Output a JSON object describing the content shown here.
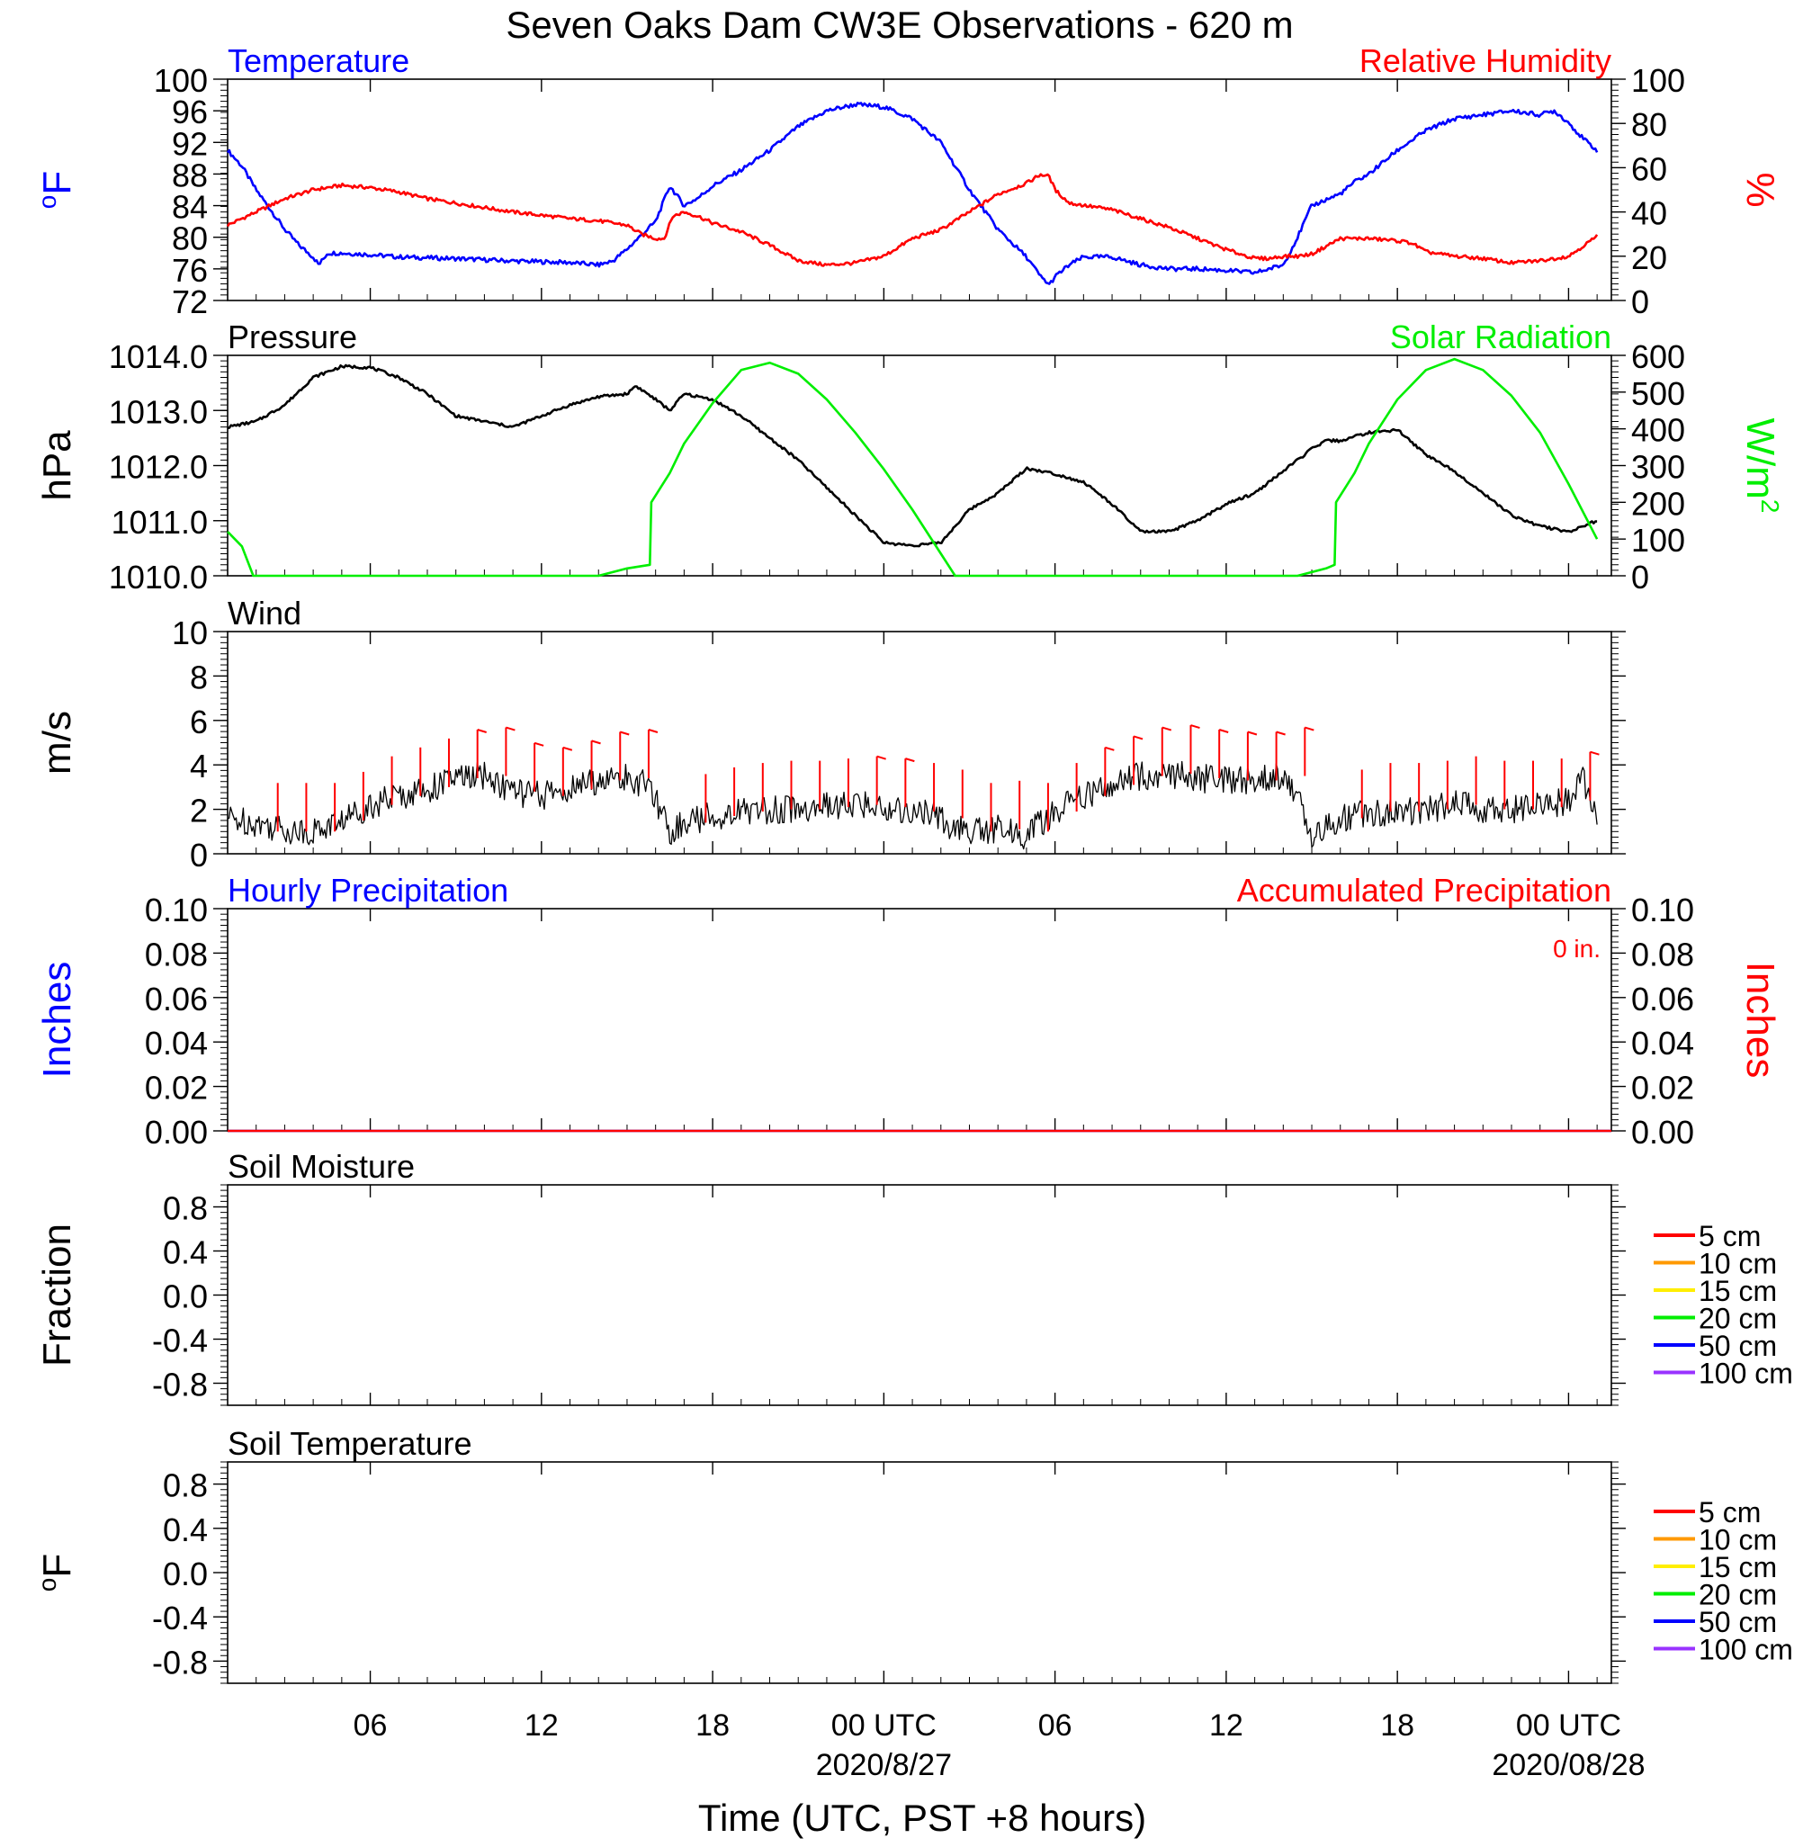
{
  "title": "Seven Oaks Dam CW3E Observations - 620 m",
  "xaxis": {
    "label": "Time (UTC, PST +8 hours)",
    "range_hours": [
      0,
      48.5
    ],
    "ticks": [
      {
        "hour": 5,
        "label": "06",
        "date": ""
      },
      {
        "hour": 11,
        "label": "12",
        "date": ""
      },
      {
        "hour": 17,
        "label": "18",
        "date": ""
      },
      {
        "hour": 23,
        "label": "00 UTC",
        "date": "2020/8/27"
      },
      {
        "hour": 29,
        "label": "06",
        "date": ""
      },
      {
        "hour": 35,
        "label": "12",
        "date": ""
      },
      {
        "hour": 41,
        "label": "18",
        "date": ""
      },
      {
        "hour": 47,
        "label": "00 UTC",
        "date": "2020/08/28"
      }
    ]
  },
  "colors": {
    "temperature": "#0000ff",
    "humidity": "#ff0000",
    "pressure": "#000000",
    "solar": "#00ee00",
    "wind": "#000000",
    "barb": "#ff0000",
    "hourly_precip": "#0000ff",
    "accum_precip": "#ff0000"
  },
  "legend": [
    {
      "label": "5 cm",
      "color": "#ff0000"
    },
    {
      "label": "10 cm",
      "color": "#ff9900"
    },
    {
      "label": "15 cm",
      "color": "#ffee00"
    },
    {
      "label": "20 cm",
      "color": "#00ee00"
    },
    {
      "label": "50 cm",
      "color": "#0000ff"
    },
    {
      "label": "100 cm",
      "color": "#9933ff"
    }
  ],
  "chart_data": [
    {
      "type": "line",
      "title_left": "Temperature",
      "title_right": "Relative Humidity",
      "ylabel_left": "oF",
      "ylabel_right": "%",
      "ylim_left": [
        72,
        100
      ],
      "ylim_right": [
        0,
        100
      ],
      "yticks_left": [
        "72",
        "76",
        "80",
        "84",
        "88",
        "92",
        "96",
        "100"
      ],
      "yticks_right": [
        "0",
        "20",
        "40",
        "60",
        "80",
        "100"
      ],
      "series": [
        {
          "name": "Temperature",
          "axis": "left",
          "x": [
            0,
            0.5,
            1,
            1.5,
            2,
            2.5,
            3,
            3.2,
            3.5,
            4,
            5,
            6,
            8,
            10,
            12,
            13,
            13.5,
            14,
            15,
            15.5,
            16,
            16.5,
            17,
            18,
            19,
            20,
            21,
            22,
            23,
            24,
            25,
            26,
            27,
            28,
            28.5,
            28.8,
            29,
            29.5,
            30,
            31,
            32,
            33,
            34,
            35,
            36,
            37,
            37.5,
            38,
            39,
            39.5,
            40,
            41,
            42,
            43,
            44,
            45,
            46,
            46.5,
            47,
            47.5,
            48
          ],
          "y": [
            91,
            89,
            86,
            83.5,
            81,
            79,
            77.5,
            76.5,
            78,
            78,
            77.8,
            77.5,
            77.3,
            77,
            76.8,
            76.5,
            77,
            78.5,
            82,
            86.5,
            84,
            85,
            86.5,
            88.5,
            91,
            94,
            96,
            96.8,
            96.5,
            95,
            92,
            86,
            81,
            77.5,
            75,
            74,
            75,
            76.5,
            77.5,
            77.5,
            76.5,
            76,
            76,
            75.8,
            75.5,
            76.5,
            80,
            84,
            85.5,
            87,
            88,
            91,
            93.5,
            95,
            95.5,
            96,
            95.5,
            96,
            94.5,
            92.5,
            91
          ]
        },
        {
          "name": "Relative Humidity",
          "axis": "right",
          "x": [
            0,
            1,
            2,
            3,
            4,
            5,
            6,
            7,
            8,
            10,
            12,
            13,
            14,
            14.5,
            15,
            15.3,
            15.6,
            16,
            16.5,
            17,
            18,
            19,
            20,
            21,
            22,
            23,
            24,
            25,
            26,
            27,
            28,
            28.5,
            28.8,
            29,
            29.5,
            30,
            31,
            32,
            33,
            34,
            35,
            36,
            36.5,
            37,
            37.5,
            38,
            39,
            40,
            41,
            41.5,
            42,
            43,
            44,
            45,
            46,
            47,
            48
          ],
          "y": [
            34,
            40,
            46,
            50,
            52,
            51,
            49,
            46,
            44,
            40,
            37,
            36,
            34,
            30,
            28,
            28,
            38,
            40,
            38,
            35,
            31,
            25,
            18,
            16,
            17,
            20,
            28,
            32,
            40,
            48,
            53,
            57,
            56,
            50,
            44,
            43,
            41,
            37,
            33,
            28,
            23,
            19,
            19,
            20,
            20,
            21,
            28,
            28,
            27,
            26,
            22,
            20,
            19,
            17,
            18,
            20,
            29
          ]
        }
      ]
    },
    {
      "type": "line",
      "title_left": "Pressure",
      "title_right": "Solar Radiation",
      "ylabel_left": "hPa",
      "ylabel_right": "W/m2",
      "ylim_left": [
        1010,
        1014
      ],
      "ylim_right": [
        0,
        600
      ],
      "yticks_left": [
        "1010.0",
        "1011.0",
        "1012.0",
        "1013.0",
        "1014.0"
      ],
      "yticks_right": [
        "0",
        "100",
        "200",
        "300",
        "400",
        "500",
        "600"
      ],
      "series": [
        {
          "name": "Pressure",
          "axis": "left",
          "x": [
            0,
            1,
            2,
            3,
            4,
            5,
            6,
            7,
            8,
            9,
            10,
            11,
            12,
            13,
            14,
            14.3,
            15,
            15.5,
            16,
            17,
            18,
            19,
            20,
            21,
            22,
            23,
            24,
            25,
            26,
            27,
            28,
            29,
            30,
            31,
            32,
            33,
            34,
            35,
            36,
            37,
            38,
            38.5,
            39,
            40,
            41,
            42,
            43,
            44,
            45,
            46,
            47,
            48
          ],
          "y": [
            1012.7,
            1012.8,
            1013.1,
            1013.6,
            1013.8,
            1013.78,
            1013.6,
            1013.3,
            1012.9,
            1012.8,
            1012.7,
            1012.9,
            1013.1,
            1013.25,
            1013.3,
            1013.45,
            1013.2,
            1013.0,
            1013.3,
            1013.2,
            1012.9,
            1012.5,
            1012.1,
            1011.6,
            1011.1,
            1010.6,
            1010.55,
            1010.6,
            1011.2,
            1011.5,
            1011.95,
            1011.85,
            1011.7,
            1011.3,
            1010.8,
            1010.8,
            1011.0,
            1011.3,
            1011.5,
            1011.9,
            1012.3,
            1012.45,
            1012.45,
            1012.6,
            1012.65,
            1012.2,
            1011.9,
            1011.5,
            1011.1,
            1010.9,
            1010.8,
            1011.0
          ]
        },
        {
          "name": "Solar Radiation",
          "axis": "right",
          "x": [
            0,
            0.5,
            0.9,
            1.5,
            13,
            14,
            14.8,
            14.85,
            15.5,
            16,
            17,
            18,
            19,
            20,
            21,
            22,
            23,
            24,
            25,
            25.5,
            26,
            37.5,
            38.5,
            38.8,
            38.85,
            39.5,
            40,
            41,
            42,
            43,
            44,
            45,
            46,
            47,
            48
          ],
          "y": [
            120,
            80,
            0,
            0,
            0,
            20,
            30,
            200,
            280,
            360,
            470,
            560,
            580,
            550,
            480,
            390,
            290,
            180,
            60,
            0,
            0,
            0,
            20,
            30,
            200,
            280,
            360,
            480,
            560,
            590,
            560,
            490,
            390,
            250,
            100
          ]
        }
      ]
    },
    {
      "type": "line",
      "title_left": "Wind",
      "ylabel_left": "m/s",
      "ylim_left": [
        0,
        10
      ],
      "yticks_left": [
        "0",
        "2",
        "4",
        "6",
        "8",
        "10"
      ],
      "series": [
        {
          "name": "Wind",
          "axis": "left",
          "x": [
            0,
            1,
            2,
            2.5,
            3,
            4,
            5,
            6,
            7,
            8,
            9,
            10,
            11,
            12,
            13,
            14,
            14.5,
            15,
            15.5,
            16,
            17,
            18,
            19,
            20,
            21,
            22,
            23,
            24,
            25,
            25.5,
            26,
            27,
            27.5,
            28,
            29,
            30,
            31,
            32,
            33,
            34,
            35,
            36,
            37,
            37.5,
            38,
            38.5,
            39,
            40,
            41,
            42,
            43,
            44,
            45,
            46,
            47,
            47.5,
            48
          ],
          "y": [
            1.6,
            1.4,
            1.1,
            1.0,
            1.0,
            1.5,
            2.2,
            2.6,
            2.9,
            3.4,
            3.5,
            2.8,
            2.6,
            2.9,
            3.3,
            3.4,
            3.2,
            2.5,
            1.0,
            1.4,
            1.7,
            1.9,
            2.0,
            2.0,
            2.1,
            2.2,
            2.1,
            1.9,
            1.6,
            1.1,
            1.0,
            1.1,
            1.0,
            0.8,
            1.9,
            2.6,
            3.1,
            3.5,
            3.6,
            3.4,
            3.3,
            3.3,
            3.5,
            2.5,
            0.8,
            1.2,
            1.6,
            1.9,
            1.9,
            2.0,
            2.2,
            2.0,
            2.0,
            2.1,
            2.4,
            3.3,
            1.8
          ]
        },
        {
          "name": "Wind Barbs",
          "axis": "left",
          "x": [
            1,
            2,
            3,
            4,
            5,
            6,
            7,
            8,
            9,
            10,
            11,
            12,
            13,
            14,
            16,
            17,
            18,
            19,
            20,
            21,
            22,
            23,
            24,
            25,
            26,
            27,
            28,
            29,
            30,
            31,
            32,
            33,
            34,
            35,
            36,
            37,
            39,
            40,
            41,
            42,
            43,
            44,
            45,
            46,
            47
          ],
          "y": [
            1.0,
            1.0,
            1.0,
            1.5,
            2.2,
            2.6,
            3.0,
            3.4,
            3.5,
            2.8,
            2.6,
            2.9,
            3.3,
            3.4,
            1.4,
            1.7,
            1.9,
            2.0,
            2.0,
            2.1,
            2.2,
            2.1,
            1.9,
            1.6,
            1.0,
            1.1,
            1.0,
            1.9,
            2.6,
            3.1,
            3.5,
            3.6,
            3.4,
            3.3,
            3.3,
            3.5,
            1.6,
            1.9,
            1.9,
            2.0,
            2.2,
            2.0,
            2.0,
            2.1,
            2.4
          ],
          "flag": [
            0,
            0,
            0,
            0,
            0,
            0,
            0,
            1,
            1,
            1,
            1,
            1,
            1,
            1,
            0,
            0,
            0,
            0,
            0,
            0,
            1,
            1,
            0,
            0,
            0,
            0,
            0,
            0,
            1,
            1,
            1,
            1,
            1,
            1,
            1,
            1,
            0,
            0,
            0,
            0,
            0,
            0,
            0,
            0,
            1
          ]
        }
      ]
    },
    {
      "type": "line",
      "title_left": "Hourly Precipitation",
      "title_right": "Accumulated Precipitation",
      "annotation": "0 in.",
      "ylabel_left": "Inches",
      "ylabel_right": "Inches",
      "ylim_left": [
        0,
        0.1
      ],
      "ylim_right": [
        0,
        0.1
      ],
      "yticks_left": [
        "0.00",
        "0.02",
        "0.04",
        "0.06",
        "0.08",
        "0.10"
      ],
      "yticks_right": [
        "0.00",
        "0.02",
        "0.04",
        "0.06",
        "0.08",
        "0.10"
      ],
      "series": [
        {
          "name": "Hourly Precipitation",
          "axis": "left",
          "x": [
            0,
            48.5
          ],
          "y": [
            0,
            0
          ]
        },
        {
          "name": "Accumulated Precipitation",
          "axis": "right",
          "x": [
            0,
            48.5
          ],
          "y": [
            0,
            0
          ]
        }
      ]
    },
    {
      "type": "line",
      "title_left": "Soil Moisture",
      "ylabel_left": "Fraction",
      "ylim_left": [
        -1,
        1
      ],
      "yticks_left": [
        "-0.8",
        "-0.4",
        "0.0",
        "0.4",
        "0.8"
      ],
      "series": []
    },
    {
      "type": "line",
      "title_left": "Soil Temperature",
      "ylabel_left": "oF",
      "ylim_left": [
        -1,
        1
      ],
      "yticks_left": [
        "-0.8",
        "-0.4",
        "0.0",
        "0.4",
        "0.8"
      ],
      "series": []
    }
  ]
}
